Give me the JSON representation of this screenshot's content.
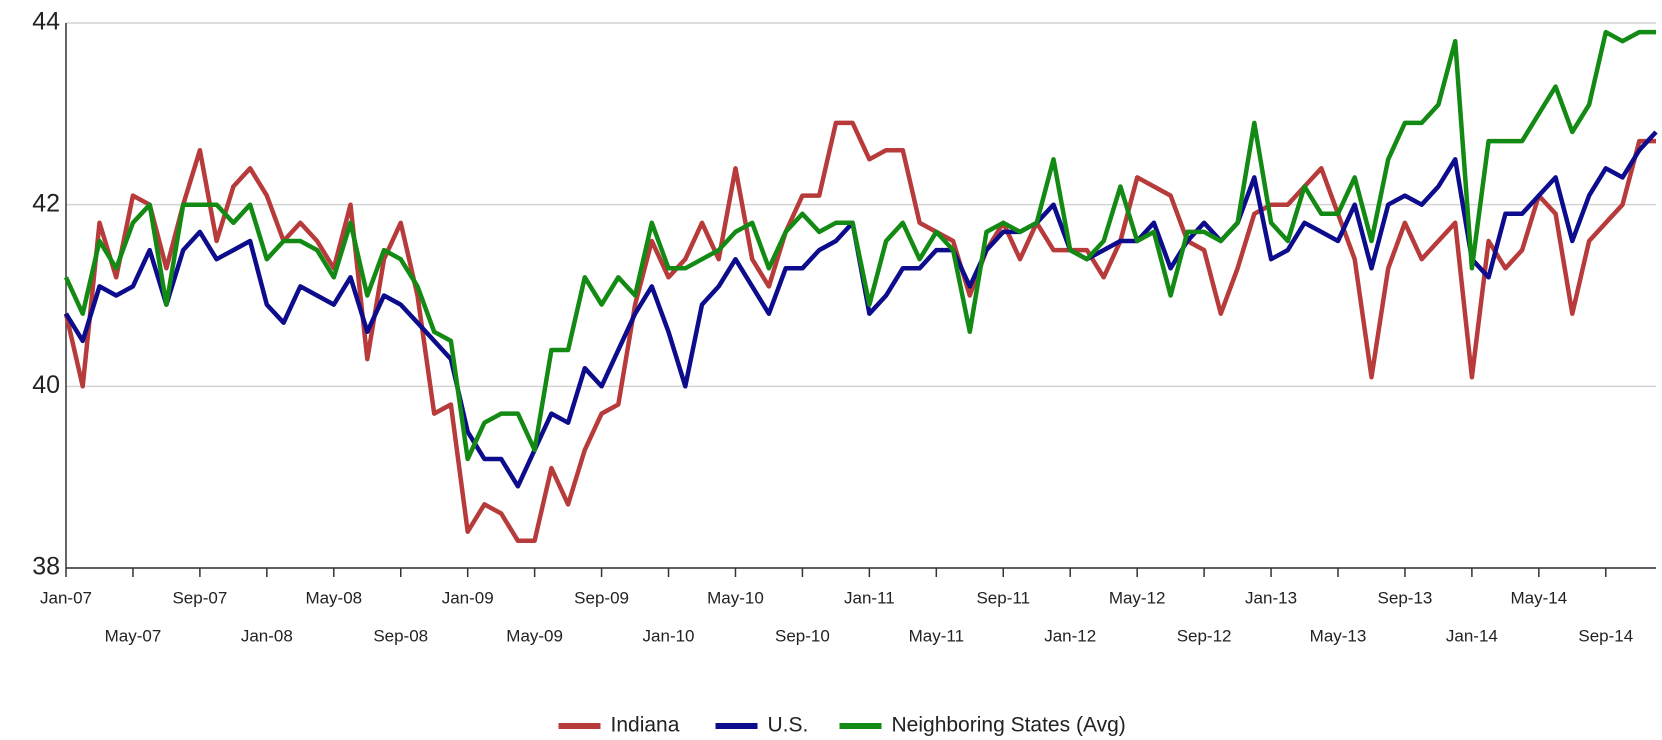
{
  "chart_data": {
    "type": "line",
    "categories": [
      "Jan-07",
      null,
      null,
      null,
      "May-07",
      null,
      null,
      null,
      "Sep-07",
      null,
      null,
      null,
      "Jan-08",
      null,
      null,
      null,
      "May-08",
      null,
      null,
      null,
      "Sep-08",
      null,
      null,
      null,
      "Jan-09",
      null,
      null,
      null,
      "May-09",
      null,
      null,
      null,
      "Sep-09",
      null,
      null,
      null,
      "Jan-10",
      null,
      null,
      null,
      "May-10",
      null,
      null,
      null,
      "Sep-10",
      null,
      null,
      null,
      "Jan-11",
      null,
      null,
      null,
      "May-11",
      null,
      null,
      null,
      "Sep-11",
      null,
      null,
      null,
      "Jan-12",
      null,
      null,
      null,
      "May-12",
      null,
      null,
      null,
      "Sep-12",
      null,
      null,
      null,
      "Jan-13",
      null,
      null,
      null,
      "May-13",
      null,
      null,
      null,
      "Sep-13",
      null,
      null,
      null,
      "Jan-14",
      null,
      null,
      null,
      "May-14",
      null,
      null,
      null,
      "Sep-14",
      null,
      null,
      null
    ],
    "series": [
      {
        "name": "Indiana",
        "color": "#b83b3b",
        "values": [
          40.8,
          40.0,
          41.8,
          41.2,
          42.1,
          42.0,
          41.3,
          42.0,
          42.6,
          41.6,
          42.2,
          42.4,
          42.1,
          41.6,
          41.8,
          41.6,
          41.3,
          42.0,
          40.3,
          41.4,
          41.8,
          41.0,
          39.7,
          39.8,
          38.4,
          38.7,
          38.6,
          38.3,
          38.3,
          39.1,
          38.7,
          39.3,
          39.7,
          39.8,
          40.9,
          41.6,
          41.2,
          41.4,
          41.8,
          41.4,
          42.4,
          41.4,
          41.1,
          41.7,
          42.1,
          42.1,
          42.9,
          42.9,
          42.5,
          42.6,
          42.6,
          41.8,
          41.7,
          41.6,
          41.0,
          41.5,
          41.8,
          41.4,
          41.8,
          41.5,
          41.5,
          41.5,
          41.2,
          41.6,
          42.3,
          42.2,
          42.1,
          41.6,
          41.5,
          40.8,
          41.3,
          41.9,
          42.0,
          42.0,
          42.2,
          42.4,
          41.9,
          41.4,
          40.1,
          41.3,
          41.8,
          41.4,
          41.6,
          41.8,
          40.1,
          41.6,
          41.3,
          41.5,
          42.1,
          41.9,
          40.8,
          41.6,
          41.8,
          42.0,
          42.7,
          42.7
        ]
      },
      {
        "name": "U.S.",
        "color": "#0c0c8c",
        "values": [
          40.8,
          40.5,
          41.1,
          41.0,
          41.1,
          41.5,
          40.9,
          41.5,
          41.7,
          41.4,
          41.5,
          41.6,
          40.9,
          40.7,
          41.1,
          41.0,
          40.9,
          41.2,
          40.6,
          41.0,
          40.9,
          40.7,
          40.5,
          40.3,
          39.5,
          39.2,
          39.2,
          38.9,
          39.3,
          39.7,
          39.6,
          40.2,
          40.0,
          40.4,
          40.8,
          41.1,
          40.6,
          40.0,
          40.9,
          41.1,
          41.4,
          41.1,
          40.8,
          41.3,
          41.3,
          41.5,
          41.6,
          41.8,
          40.8,
          41.0,
          41.3,
          41.3,
          41.5,
          41.5,
          41.1,
          41.5,
          41.7,
          41.7,
          41.8,
          42.0,
          41.5,
          41.4,
          41.5,
          41.6,
          41.6,
          41.8,
          41.3,
          41.6,
          41.8,
          41.6,
          41.8,
          42.3,
          41.4,
          41.5,
          41.8,
          41.7,
          41.6,
          42.0,
          41.3,
          42.0,
          42.1,
          42.0,
          42.2,
          42.5,
          41.4,
          41.2,
          41.9,
          41.9,
          42.1,
          42.3,
          41.6,
          42.1,
          42.4,
          42.3,
          42.6,
          42.8
        ]
      },
      {
        "name": "Neighboring States (Avg)",
        "color": "#138a13",
        "values": [
          41.2,
          40.8,
          41.6,
          41.3,
          41.8,
          42.0,
          40.9,
          42.0,
          42.0,
          42.0,
          41.8,
          42.0,
          41.4,
          41.6,
          41.6,
          41.5,
          41.2,
          41.8,
          41.0,
          41.5,
          41.4,
          41.1,
          40.6,
          40.5,
          39.2,
          39.6,
          39.7,
          39.7,
          39.3,
          40.4,
          40.4,
          41.2,
          40.9,
          41.2,
          41.0,
          41.8,
          41.3,
          41.3,
          41.4,
          41.5,
          41.7,
          41.8,
          41.3,
          41.7,
          41.9,
          41.7,
          41.8,
          41.8,
          40.9,
          41.6,
          41.8,
          41.4,
          41.7,
          41.5,
          40.6,
          41.7,
          41.8,
          41.7,
          41.8,
          42.5,
          41.5,
          41.4,
          41.6,
          42.2,
          41.6,
          41.7,
          41.0,
          41.7,
          41.7,
          41.6,
          41.8,
          42.9,
          41.8,
          41.6,
          42.2,
          41.9,
          41.9,
          42.3,
          41.6,
          42.5,
          42.9,
          42.9,
          43.1,
          43.8,
          41.3,
          42.7,
          42.7,
          42.7,
          43.0,
          43.3,
          42.8,
          43.1,
          43.9,
          43.8,
          43.9,
          43.9
        ]
      }
    ],
    "ylim": [
      38,
      44
    ],
    "yticks": [
      38,
      40,
      42,
      44
    ],
    "grid": true,
    "legend": "bottom"
  }
}
